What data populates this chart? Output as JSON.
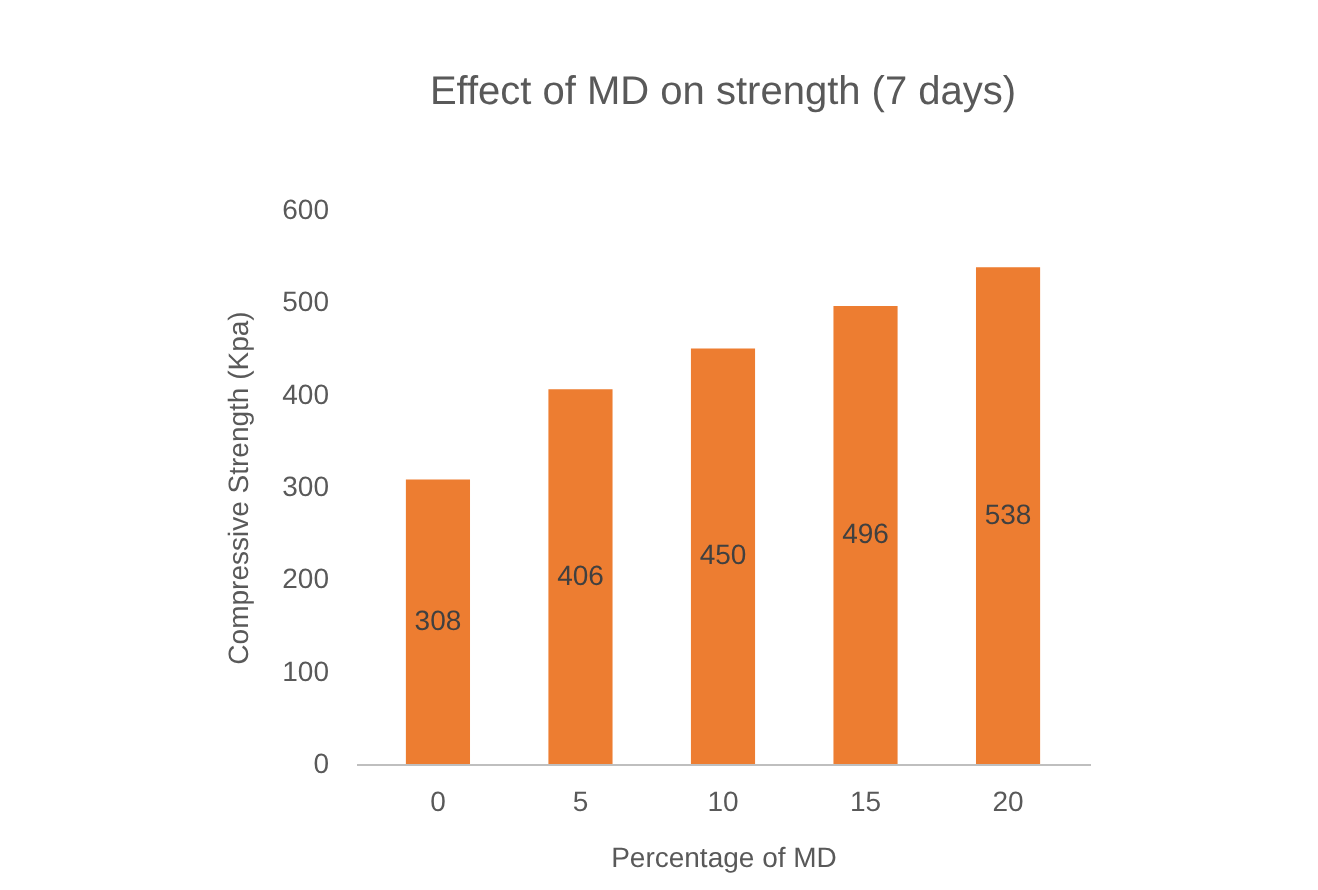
{
  "chart_data": {
    "type": "bar",
    "title": "Effect of MD on strength (7 days)",
    "xlabel": "Percentage of MD",
    "ylabel": "Compressive  Strength (Kpa)",
    "categories": [
      "0",
      "5",
      "10",
      "15",
      "20"
    ],
    "values": [
      308,
      406,
      450,
      496,
      538
    ],
    "color": "#ed7d31",
    "ylim": [
      0,
      600
    ],
    "yticks": [
      0,
      100,
      200,
      300,
      400,
      500,
      600
    ],
    "grid": false,
    "data_labels": true
  }
}
